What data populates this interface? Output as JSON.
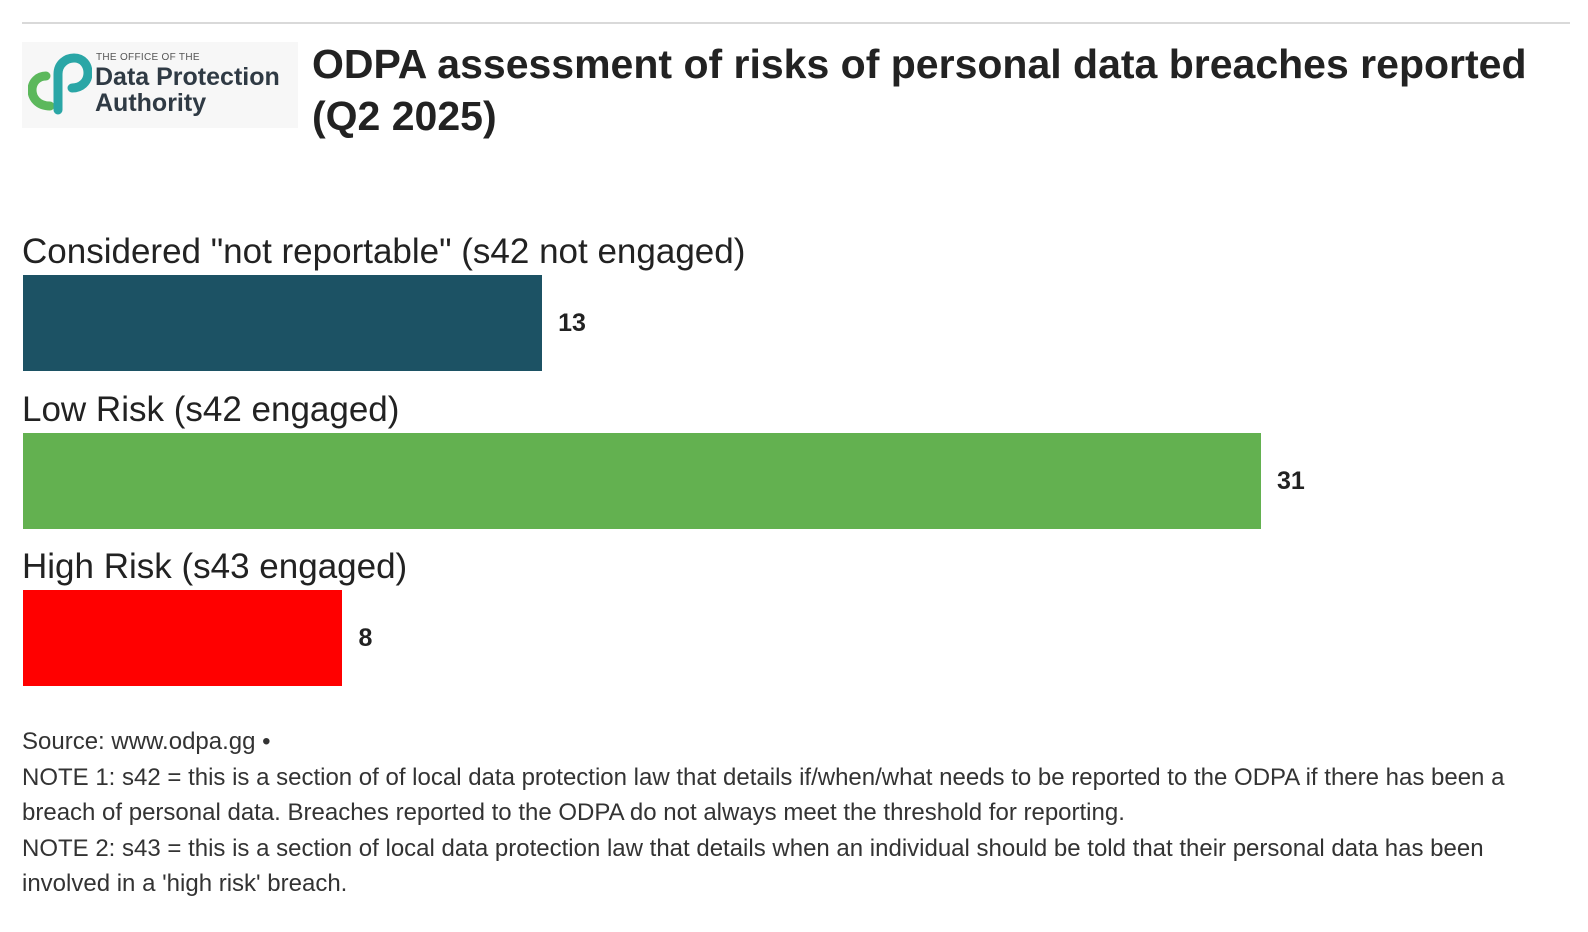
{
  "logo": {
    "line_small": "THE OFFICE OF THE",
    "line1": "Data Protection",
    "line2": "Authority",
    "colors": [
      "#2aa6a6",
      "#5cb85c"
    ]
  },
  "title": "ODPA assessment of risks of personal data breaches reported (Q2 2025)",
  "chart_data": {
    "type": "bar",
    "orientation": "horizontal",
    "title": "ODPA assessment of risks of personal data breaches reported (Q2 2025)",
    "categories": [
      "Considered \"not reportable\" (s42 not engaged)",
      "Low Risk (s42 engaged)",
      "High Risk (s43 engaged)"
    ],
    "values": [
      13,
      31,
      8
    ],
    "value_labels": [
      "13",
      "31",
      "8"
    ],
    "colors": [
      "#1c5264",
      "#63b150",
      "#ff0000"
    ],
    "xlim": [
      0,
      31
    ],
    "grid": false,
    "legend": "none"
  },
  "footer": {
    "source": "Source: www.odpa.gg •",
    "note1": "NOTE 1: s42 = this is a section of of local data protection law that details if/when/what needs to be reported to the ODPA if there has been a breach of personal data. Breaches reported to the ODPA do not always meet the threshold for reporting.",
    "note2": "NOTE 2: s43 = this is a section of local data protection law that details when an individual should be told that their personal data has been involved in a 'high risk' breach."
  }
}
